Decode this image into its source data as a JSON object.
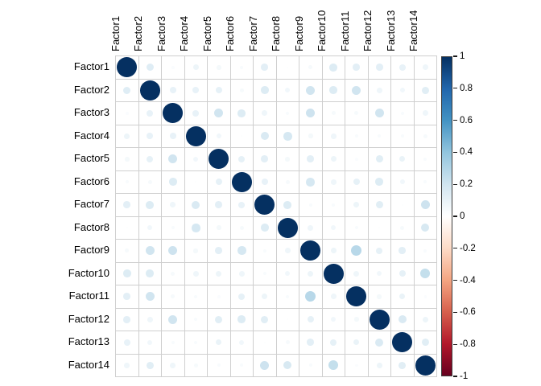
{
  "chart_data": {
    "type": "heatmap",
    "subtype": "correlation-matrix-circle-plot",
    "title": "",
    "labels": [
      "Factor1",
      "Factor2",
      "Factor3",
      "Factor4",
      "Factor5",
      "Factor6",
      "Factor7",
      "Factor8",
      "Factor9",
      "Factor10",
      "Factor11",
      "Factor12",
      "Factor13",
      "Factor14"
    ],
    "matrix": [
      [
        1.0,
        0.14,
        0.02,
        0.08,
        0.05,
        0.03,
        0.12,
        0.01,
        0.04,
        0.15,
        0.12,
        0.12,
        0.1,
        0.07
      ],
      [
        0.14,
        1.0,
        0.1,
        0.1,
        0.11,
        0.04,
        0.15,
        0.06,
        0.2,
        0.15,
        0.2,
        0.07,
        0.06,
        0.13
      ],
      [
        0.02,
        0.1,
        1.0,
        0.1,
        0.2,
        0.15,
        0.07,
        0.03,
        0.21,
        0.04,
        0.04,
        0.2,
        0.03,
        0.07
      ],
      [
        0.08,
        0.1,
        0.1,
        1.0,
        0.06,
        0.01,
        0.16,
        0.18,
        0.05,
        0.07,
        0.03,
        0.03,
        0.03,
        0.04
      ],
      [
        0.05,
        0.11,
        0.2,
        0.06,
        1.0,
        0.11,
        0.12,
        0.05,
        0.12,
        0.08,
        0.02,
        0.13,
        0.09,
        0.03
      ],
      [
        0.03,
        0.04,
        0.15,
        0.01,
        0.11,
        1.0,
        0.1,
        0.04,
        0.18,
        0.07,
        0.11,
        0.15,
        0.06,
        0.03
      ],
      [
        0.12,
        0.15,
        0.07,
        0.16,
        0.12,
        0.1,
        1.0,
        0.15,
        0.03,
        0.03,
        0.08,
        0.13,
        0.01,
        0.21
      ],
      [
        0.01,
        0.06,
        0.03,
        0.18,
        0.05,
        0.04,
        0.15,
        1.0,
        0.07,
        0.06,
        0.03,
        0.01,
        0.04,
        0.17
      ],
      [
        0.04,
        0.2,
        0.21,
        0.05,
        0.12,
        0.18,
        0.03,
        0.07,
        1.0,
        0.08,
        0.28,
        0.11,
        0.12,
        0.03
      ],
      [
        0.15,
        0.15,
        0.04,
        0.07,
        0.08,
        0.07,
        0.03,
        0.06,
        0.08,
        1.0,
        0.07,
        0.06,
        0.11,
        0.24
      ],
      [
        0.12,
        0.2,
        0.04,
        0.03,
        0.02,
        0.11,
        0.08,
        0.03,
        0.28,
        0.07,
        1.0,
        0.05,
        0.09,
        0.02
      ],
      [
        0.12,
        0.07,
        0.2,
        0.03,
        0.13,
        0.15,
        0.13,
        0.01,
        0.11,
        0.06,
        0.05,
        1.0,
        0.16,
        0.08
      ],
      [
        0.1,
        0.06,
        0.03,
        0.03,
        0.09,
        0.06,
        0.01,
        0.04,
        0.12,
        0.11,
        0.09,
        0.16,
        1.0,
        0.13
      ],
      [
        0.07,
        0.13,
        0.07,
        0.04,
        0.03,
        0.03,
        0.21,
        0.17,
        0.03,
        0.24,
        0.02,
        0.08,
        0.13,
        1.0
      ]
    ],
    "value_range": [
      -1,
      1
    ],
    "grid": true,
    "legend_position": "right",
    "colorbar": {
      "tick_labels": [
        "1",
        "0.8",
        "0.6",
        "0.4",
        "0.2",
        "0",
        "-0.2",
        "-0.4",
        "-0.6",
        "-0.8",
        "-1"
      ],
      "tick_values": [
        1,
        0.8,
        0.6,
        0.4,
        0.2,
        0,
        -0.2,
        -0.4,
        -0.6,
        -0.8,
        -1
      ]
    },
    "colorscale": [
      {
        "value": -1.0,
        "color": "#67001F"
      },
      {
        "value": -0.8,
        "color": "#B2182B"
      },
      {
        "value": -0.6,
        "color": "#D6604D"
      },
      {
        "value": -0.4,
        "color": "#F4A582"
      },
      {
        "value": -0.2,
        "color": "#FDDBC7"
      },
      {
        "value": 0.0,
        "color": "#FFFFFF"
      },
      {
        "value": 0.2,
        "color": "#D1E5F0"
      },
      {
        "value": 0.4,
        "color": "#92C5DE"
      },
      {
        "value": 0.6,
        "color": "#4393C3"
      },
      {
        "value": 0.8,
        "color": "#2166AC"
      },
      {
        "value": 1.0,
        "color": "#053061"
      }
    ],
    "colors": {
      "background": "#ffffff",
      "grid_line": "#cfcfcf",
      "label_text": "#000000",
      "diagonal_circle": "#053061"
    }
  }
}
